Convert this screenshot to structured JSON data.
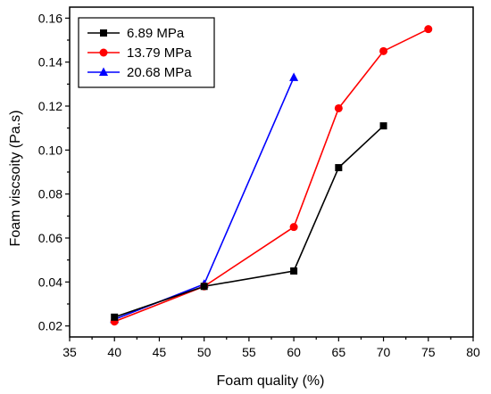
{
  "chart_data": {
    "type": "line",
    "title": "",
    "xlabel": "Foam quality (%)",
    "ylabel": "Foam viscsoity (Pa.s)",
    "xlim": [
      35,
      80
    ],
    "ylim": [
      0.015,
      0.165
    ],
    "x_ticks": [
      35,
      40,
      45,
      50,
      55,
      60,
      65,
      70,
      75,
      80
    ],
    "y_ticks": [
      0.02,
      0.04,
      0.06,
      0.08,
      0.1,
      0.12,
      0.14,
      0.16
    ],
    "y_tick_labels": [
      "0.02",
      "0.04",
      "0.06",
      "0.08",
      "0.10",
      "0.12",
      "0.14",
      "0.16"
    ],
    "grid": false,
    "legend_position": "top-left",
    "series": [
      {
        "name": "6.89 MPa",
        "color": "#000000",
        "marker": "square",
        "x": [
          40,
          50,
          60,
          65,
          70
        ],
        "y": [
          0.024,
          0.038,
          0.045,
          0.092,
          0.111
        ]
      },
      {
        "name": "13.79 MPa",
        "color": "#ff0000",
        "marker": "circle",
        "x": [
          40,
          50,
          60,
          65,
          70,
          75
        ],
        "y": [
          0.022,
          0.038,
          0.065,
          0.119,
          0.145,
          0.155
        ]
      },
      {
        "name": "20.68 MPa",
        "color": "#0000ff",
        "marker": "triangle",
        "x": [
          40,
          50,
          60
        ],
        "y": [
          0.023,
          0.039,
          0.133
        ]
      }
    ]
  }
}
